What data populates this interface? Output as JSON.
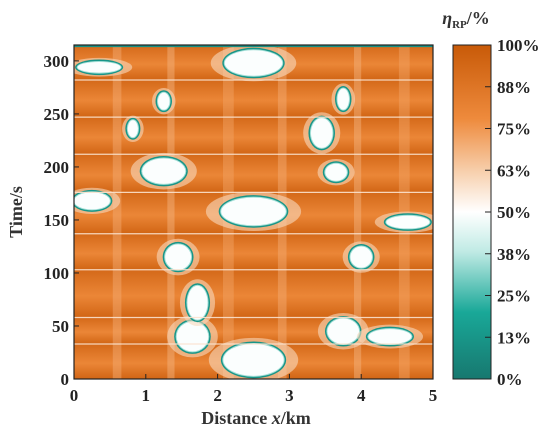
{
  "chart_data": {
    "type": "heatmap",
    "title": "",
    "xlabel_prefix": "Distance ",
    "xlabel_var": "x",
    "xlabel_suffix": "/km",
    "ylabel": "Time/s",
    "xlim": [
      0,
      5
    ],
    "ylim": [
      0,
      315
    ],
    "x_ticks": [
      0,
      1,
      2,
      3,
      4,
      5
    ],
    "y_ticks": [
      0,
      50,
      100,
      150,
      200,
      250,
      300
    ],
    "colorbar": {
      "title_symbol": "η",
      "title_subscript": "RP",
      "title_suffix": "/%",
      "range": [
        0,
        100
      ],
      "ticks": [
        "0%",
        "13%",
        "25%",
        "38%",
        "50%",
        "63%",
        "75%",
        "88%",
        "100%"
      ],
      "tick_values": [
        0,
        12.5,
        25,
        37.5,
        50,
        62.5,
        75,
        87.5,
        100
      ]
    },
    "colormap": [
      [
        0,
        "#17786f"
      ],
      [
        0.2,
        "#19a898"
      ],
      [
        0.38,
        "#bfeae4"
      ],
      [
        0.5,
        "#ffffff"
      ],
      [
        0.62,
        "#f7d0ae"
      ],
      [
        0.78,
        "#ee8a3c"
      ],
      [
        1,
        "#c85a08"
      ]
    ],
    "phase_bands_s": [
      0,
      33,
      58,
      103,
      137,
      176,
      212,
      247,
      282,
      315
    ],
    "white_regions": [
      {
        "x": 2.5,
        "t": 18,
        "rx": 0.42,
        "rt": 15
      },
      {
        "x": 1.65,
        "t": 40,
        "rx": 0.22,
        "rt": 14
      },
      {
        "x": 3.75,
        "t": 45,
        "rx": 0.22,
        "rt": 12
      },
      {
        "x": 1.72,
        "t": 72,
        "rx": 0.14,
        "rt": 16
      },
      {
        "x": 4.4,
        "t": 40,
        "rx": 0.3,
        "rt": 7
      },
      {
        "x": 1.45,
        "t": 115,
        "rx": 0.18,
        "rt": 12
      },
      {
        "x": 4.0,
        "t": 115,
        "rx": 0.15,
        "rt": 10
      },
      {
        "x": 2.5,
        "t": 158,
        "rx": 0.45,
        "rt": 13
      },
      {
        "x": 4.65,
        "t": 148,
        "rx": 0.3,
        "rt": 6
      },
      {
        "x": 0.25,
        "t": 168,
        "rx": 0.25,
        "rt": 8
      },
      {
        "x": 1.25,
        "t": 196,
        "rx": 0.3,
        "rt": 12
      },
      {
        "x": 3.65,
        "t": 195,
        "rx": 0.15,
        "rt": 8
      },
      {
        "x": 3.45,
        "t": 232,
        "rx": 0.15,
        "rt": 14
      },
      {
        "x": 0.82,
        "t": 236,
        "rx": 0.07,
        "rt": 8
      },
      {
        "x": 1.25,
        "t": 262,
        "rx": 0.08,
        "rt": 8
      },
      {
        "x": 3.75,
        "t": 264,
        "rx": 0.08,
        "rt": 10
      },
      {
        "x": 2.5,
        "t": 298,
        "rx": 0.4,
        "rt": 12
      },
      {
        "x": 0.35,
        "t": 294,
        "rx": 0.3,
        "rt": 5
      }
    ]
  }
}
